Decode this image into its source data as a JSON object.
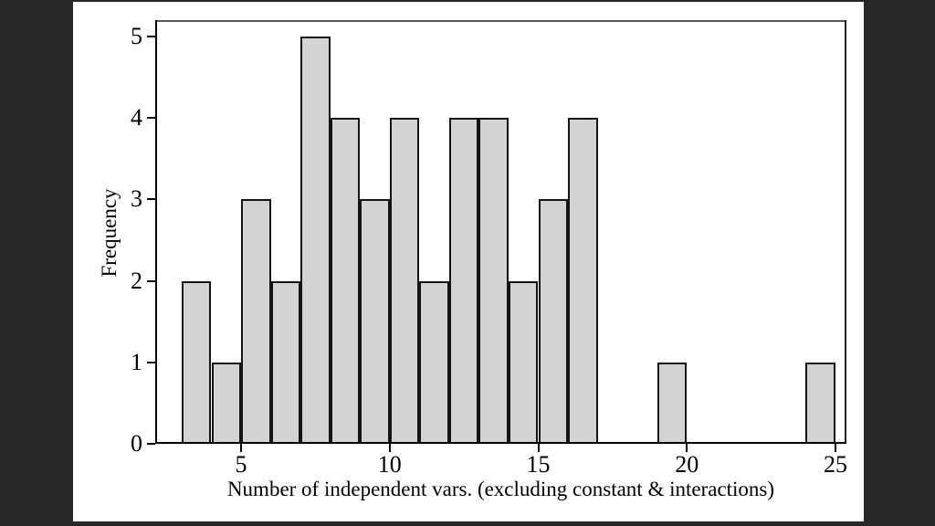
{
  "page": {
    "background_color": "#282828",
    "canvas_color": "#ffffff"
  },
  "chart_data": {
    "type": "bar",
    "subtype": "histogram",
    "title": "",
    "xlabel": "Number of independent vars. (excluding constant & interactions)",
    "ylabel": "Frequency",
    "bin_width": 1,
    "bins": [
      {
        "start": 3,
        "count": 2
      },
      {
        "start": 4,
        "count": 1
      },
      {
        "start": 5,
        "count": 3
      },
      {
        "start": 6,
        "count": 2
      },
      {
        "start": 7,
        "count": 5
      },
      {
        "start": 8,
        "count": 4
      },
      {
        "start": 9,
        "count": 3
      },
      {
        "start": 10,
        "count": 4
      },
      {
        "start": 11,
        "count": 2
      },
      {
        "start": 12,
        "count": 4
      },
      {
        "start": 13,
        "count": 4
      },
      {
        "start": 14,
        "count": 2
      },
      {
        "start": 15,
        "count": 3
      },
      {
        "start": 16,
        "count": 4
      },
      {
        "start": 19,
        "count": 1
      },
      {
        "start": 24,
        "count": 1
      }
    ],
    "x_ticks": [
      5,
      10,
      15,
      20,
      25
    ],
    "y_ticks": [
      0,
      1,
      2,
      3,
      4,
      5
    ],
    "xlim": [
      2.11,
      25.37
    ],
    "ylim": [
      0,
      5.2
    ],
    "grid": false,
    "legend_position": "none",
    "bar_fill_color": "#d3d3d3",
    "bar_edge_color": "#141414",
    "axis_color": "#000000",
    "frame_top_color": "#565656",
    "frame_right_color": "#222222",
    "tick_color": "#000000"
  }
}
